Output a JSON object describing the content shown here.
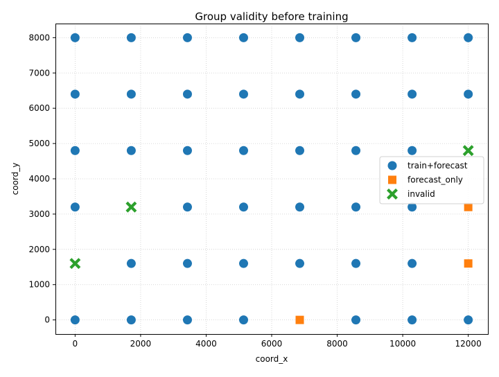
{
  "chart_data": {
    "type": "scatter",
    "title": "Group validity before training",
    "xlabel": "coord_x",
    "ylabel": "coord_y",
    "xlim": [
      -600,
      12600
    ],
    "ylim": [
      -400,
      8400
    ],
    "xticks": [
      0,
      2000,
      4000,
      6000,
      8000,
      10000,
      12000
    ],
    "yticks": [
      0,
      1000,
      2000,
      3000,
      4000,
      5000,
      6000,
      7000,
      8000
    ],
    "grid": true,
    "legend_position": "center-right",
    "series": [
      {
        "name": "train+forecast",
        "marker": "circle",
        "color": "#1f77b4",
        "points": [
          [
            0,
            0
          ],
          [
            1714,
            0
          ],
          [
            3429,
            0
          ],
          [
            5143,
            0
          ],
          [
            8571,
            0
          ],
          [
            10286,
            0
          ],
          [
            12000,
            0
          ],
          [
            1714,
            1600
          ],
          [
            3429,
            1600
          ],
          [
            5143,
            1600
          ],
          [
            6857,
            1600
          ],
          [
            8571,
            1600
          ],
          [
            10286,
            1600
          ],
          [
            0,
            3200
          ],
          [
            3429,
            3200
          ],
          [
            5143,
            3200
          ],
          [
            6857,
            3200
          ],
          [
            8571,
            3200
          ],
          [
            10286,
            3200
          ],
          [
            0,
            4800
          ],
          [
            1714,
            4800
          ],
          [
            3429,
            4800
          ],
          [
            5143,
            4800
          ],
          [
            6857,
            4800
          ],
          [
            8571,
            4800
          ],
          [
            10286,
            4800
          ],
          [
            0,
            6400
          ],
          [
            1714,
            6400
          ],
          [
            3429,
            6400
          ],
          [
            5143,
            6400
          ],
          [
            6857,
            6400
          ],
          [
            8571,
            6400
          ],
          [
            10286,
            6400
          ],
          [
            12000,
            6400
          ],
          [
            0,
            8000
          ],
          [
            1714,
            8000
          ],
          [
            3429,
            8000
          ],
          [
            5143,
            8000
          ],
          [
            6857,
            8000
          ],
          [
            8571,
            8000
          ],
          [
            10286,
            8000
          ],
          [
            12000,
            8000
          ]
        ]
      },
      {
        "name": "forecast_only",
        "marker": "square",
        "color": "#ff7f0e",
        "points": [
          [
            6857,
            0
          ],
          [
            12000,
            1600
          ],
          [
            12000,
            3200
          ]
        ]
      },
      {
        "name": "invalid",
        "marker": "x",
        "color": "#2ca02c",
        "points": [
          [
            0,
            1600
          ],
          [
            1714,
            3200
          ],
          [
            12000,
            4800
          ]
        ]
      }
    ]
  }
}
